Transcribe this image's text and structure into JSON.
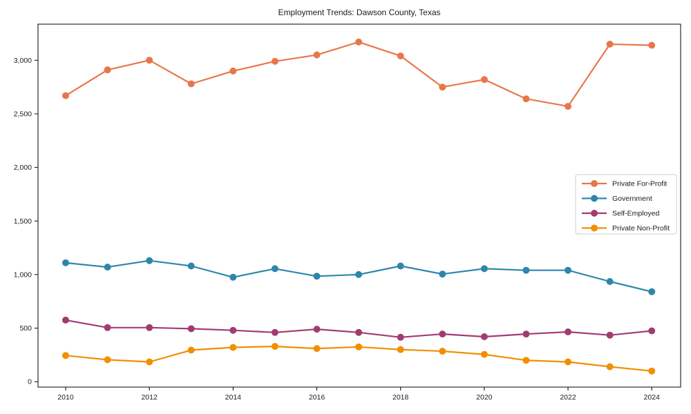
{
  "chart_data": {
    "type": "line",
    "title": "Employment Trends: Dawson County, Texas",
    "xlabel": "",
    "ylabel": "",
    "x": [
      2010,
      2011,
      2012,
      2013,
      2014,
      2015,
      2016,
      2017,
      2018,
      2019,
      2020,
      2021,
      2022,
      2023,
      2024
    ],
    "series": [
      {
        "name": "Private For-Profit",
        "color": "#E8764B",
        "values": [
          2670,
          2910,
          3000,
          2780,
          2900,
          2990,
          3050,
          3170,
          3040,
          2750,
          2820,
          2640,
          2570,
          3150,
          3140
        ]
      },
      {
        "name": "Government",
        "color": "#2E86AB",
        "values": [
          1110,
          1070,
          1130,
          1080,
          975,
          1055,
          985,
          1000,
          1080,
          1005,
          1055,
          1040,
          1040,
          935,
          840
        ]
      },
      {
        "name": "Self-Employed",
        "color": "#A23B72",
        "values": [
          575,
          505,
          505,
          495,
          480,
          460,
          490,
          460,
          415,
          445,
          420,
          445,
          465,
          435,
          475
        ]
      },
      {
        "name": "Private Non-Profit",
        "color": "#F18F01",
        "values": [
          245,
          205,
          185,
          295,
          320,
          330,
          310,
          325,
          300,
          285,
          255,
          200,
          185,
          140,
          100
        ]
      }
    ],
    "xticks": {
      "values": [
        2010,
        2012,
        2014,
        2016,
        2018,
        2020,
        2022,
        2024
      ],
      "labels": [
        "2010",
        "2012",
        "2014",
        "2016",
        "2018",
        "2020",
        "2022",
        "2024"
      ]
    },
    "yticks": {
      "values": [
        0,
        500,
        1000,
        1500,
        2000,
        2500,
        3000
      ],
      "labels": [
        "0",
        "500",
        "1,000",
        "1,500",
        "2,000",
        "2,500",
        "3,000"
      ]
    },
    "xlim": [
      2009.34,
      2024.69
    ],
    "ylim": [
      -50,
      3337
    ],
    "grid": false,
    "marker": "circle",
    "legend_position": "center right",
    "background_color": "#ffffff",
    "axis_color": "#000000",
    "legend_border_color": "#cccccc"
  }
}
